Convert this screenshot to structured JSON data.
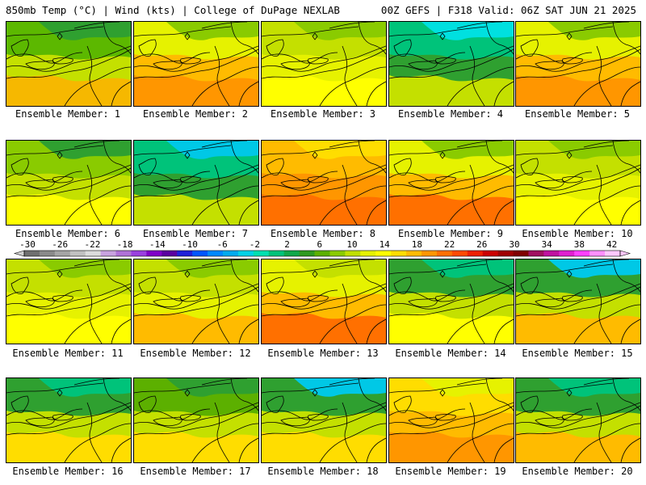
{
  "header": {
    "left": "850mb Temp (°C) | Wind (kts) | College of DuPage NEXLAB",
    "right": "00Z GEFS | F318 Valid: 06Z SAT JUN 21 2025"
  },
  "colorbar": {
    "labels": [
      "-30",
      "-26",
      "-22",
      "-18",
      "-14",
      "-10",
      "-6",
      "-2",
      "2",
      "6",
      "10",
      "14",
      "18",
      "22",
      "26",
      "30",
      "34",
      "38",
      "42"
    ],
    "colors": [
      "#6f6f6f",
      "#8a8a8a",
      "#a5a5a5",
      "#c1c1c1",
      "#dcdcdc",
      "#c8a2e0",
      "#b072d8",
      "#9a3fe0",
      "#8000c8",
      "#5a00a0",
      "#1f1fd8",
      "#0055ff",
      "#0088ff",
      "#00aaee",
      "#00d2e6",
      "#00e0b0",
      "#00c37a",
      "#10a84a",
      "#2f9a20",
      "#5cb000",
      "#8acb00",
      "#c0e000",
      "#e6f200",
      "#ffff00",
      "#ffdd00",
      "#ffbb00",
      "#ff9600",
      "#ff7000",
      "#ff4a00",
      "#ee2000",
      "#cc0000",
      "#a00000",
      "#800000",
      "#a01060",
      "#c010a0",
      "#e020d0",
      "#ff40ff",
      "#ff90ff",
      "#ffc8ff"
    ]
  },
  "panels": [
    {
      "caption": "Ensemble Member: 1",
      "palette": [
        "#f6b800",
        "#c4e000",
        "#5cb800",
        "#2fa030"
      ]
    },
    {
      "caption": "Ensemble Member: 2",
      "palette": [
        "#ff9600",
        "#ffbb00",
        "#e6f200",
        "#8acb00"
      ]
    },
    {
      "caption": "Ensemble Member: 3",
      "palette": [
        "#ffff00",
        "#e6f200",
        "#c4e000",
        "#8acb00"
      ]
    },
    {
      "caption": "Ensemble Member: 4",
      "palette": [
        "#c4e000",
        "#2fa030",
        "#00c37a",
        "#00e0e0"
      ]
    },
    {
      "caption": "Ensemble Member: 5",
      "palette": [
        "#ff9600",
        "#ffbb00",
        "#e6f200",
        "#8acb00"
      ]
    },
    {
      "caption": "Ensemble Member: 6",
      "palette": [
        "#ffff00",
        "#c4e000",
        "#8acb00",
        "#2fa030"
      ]
    },
    {
      "caption": "Ensemble Member: 7",
      "palette": [
        "#c4e000",
        "#2fa030",
        "#00c37a",
        "#00c8e6"
      ]
    },
    {
      "caption": "Ensemble Member: 8",
      "palette": [
        "#ff7000",
        "#ff9600",
        "#ffbb00",
        "#ffdd00"
      ]
    },
    {
      "caption": "Ensemble Member: 9",
      "palette": [
        "#ff7000",
        "#ffbb00",
        "#e6f200",
        "#8acb00"
      ]
    },
    {
      "caption": "Ensemble Member: 10",
      "palette": [
        "#ffff00",
        "#e6f200",
        "#c4e000",
        "#8acb00"
      ]
    },
    {
      "caption": "Ensemble Member: 11",
      "palette": [
        "#ffff00",
        "#e6f200",
        "#c4e000",
        "#8acb00"
      ]
    },
    {
      "caption": "Ensemble Member: 12",
      "palette": [
        "#ffbb00",
        "#e6f200",
        "#c4e000",
        "#8acb00"
      ]
    },
    {
      "caption": "Ensemble Member: 13",
      "palette": [
        "#ff7000",
        "#ffbb00",
        "#e6f200",
        "#c4e000"
      ]
    },
    {
      "caption": "Ensemble Member: 14",
      "palette": [
        "#ffff00",
        "#c4e000",
        "#2fa030",
        "#00c37a"
      ]
    },
    {
      "caption": "Ensemble Member: 15",
      "palette": [
        "#ffbb00",
        "#c4e000",
        "#2fa030",
        "#00c8e6"
      ]
    },
    {
      "caption": "Ensemble Member: 16",
      "palette": [
        "#ffdd00",
        "#c4e000",
        "#2fa030",
        "#00c37a"
      ]
    },
    {
      "caption": "Ensemble Member: 17",
      "palette": [
        "#ffdd00",
        "#c4e000",
        "#5cb000",
        "#2fa030"
      ]
    },
    {
      "caption": "Ensemble Member: 18",
      "palette": [
        "#ffdd00",
        "#c4e000",
        "#2fa030",
        "#00c8e6"
      ]
    },
    {
      "caption": "Ensemble Member: 19",
      "palette": [
        "#ff9600",
        "#ffbb00",
        "#ffdd00",
        "#e6f200"
      ]
    },
    {
      "caption": "Ensemble Member: 20",
      "palette": [
        "#ffbb00",
        "#c4e000",
        "#2fa030",
        "#00c37a"
      ]
    }
  ]
}
